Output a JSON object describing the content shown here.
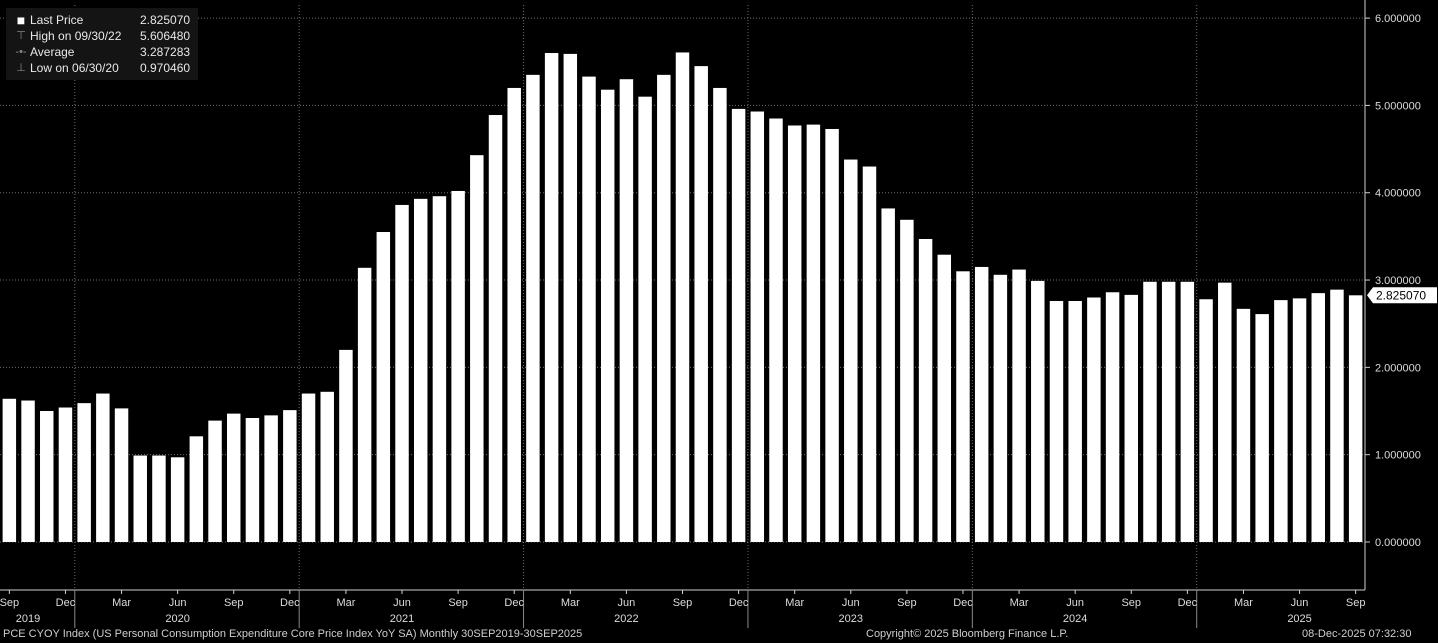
{
  "legend": {
    "last_label": "Last Price",
    "last_value": "2.825070",
    "high_label": "High on 09/30/22",
    "high_value": "5.606480",
    "avg_label": "Average",
    "avg_value": "3.287283",
    "low_label": "Low on 06/30/20",
    "low_value": "0.970460"
  },
  "last_price_tag": "2.825070",
  "footer": {
    "left": "PCE CYOY Index (US Personal Consumption Expenditure Core Price Index YoY SA) Monthly 30SEP2019-30SEP2025",
    "center": "Copyright© 2025 Bloomberg Finance L.P.",
    "right": "08-Dec-2025 07:32:30"
  },
  "chart_data": {
    "type": "bar",
    "categories": [
      "2019-09",
      "2019-10",
      "2019-11",
      "2019-12",
      "2020-01",
      "2020-02",
      "2020-03",
      "2020-04",
      "2020-05",
      "2020-06",
      "2020-07",
      "2020-08",
      "2020-09",
      "2020-10",
      "2020-11",
      "2020-12",
      "2021-01",
      "2021-02",
      "2021-03",
      "2021-04",
      "2021-05",
      "2021-06",
      "2021-07",
      "2021-08",
      "2021-09",
      "2021-10",
      "2021-11",
      "2021-12",
      "2022-01",
      "2022-02",
      "2022-03",
      "2022-04",
      "2022-05",
      "2022-06",
      "2022-07",
      "2022-08",
      "2022-09",
      "2022-10",
      "2022-11",
      "2022-12",
      "2023-01",
      "2023-02",
      "2023-03",
      "2023-04",
      "2023-05",
      "2023-06",
      "2023-07",
      "2023-08",
      "2023-09",
      "2023-10",
      "2023-11",
      "2023-12",
      "2024-01",
      "2024-02",
      "2024-03",
      "2024-04",
      "2024-05",
      "2024-06",
      "2024-07",
      "2024-08",
      "2024-09",
      "2024-10",
      "2024-11",
      "2024-12",
      "2025-01",
      "2025-02",
      "2025-03",
      "2025-04",
      "2025-05",
      "2025-06",
      "2025-07",
      "2025-08",
      "2025-09"
    ],
    "values": [
      1.64,
      1.62,
      1.5,
      1.54,
      1.59,
      1.7,
      1.53,
      0.99,
      0.99,
      0.97,
      1.21,
      1.39,
      1.47,
      1.42,
      1.45,
      1.51,
      1.7,
      1.72,
      2.2,
      3.14,
      3.55,
      3.86,
      3.93,
      3.96,
      4.02,
      4.43,
      4.89,
      5.2,
      5.35,
      5.6,
      5.59,
      5.33,
      5.18,
      5.3,
      5.1,
      5.35,
      5.60648,
      5.45,
      5.2,
      4.96,
      4.93,
      4.85,
      4.77,
      4.78,
      4.73,
      4.38,
      4.3,
      3.82,
      3.69,
      3.47,
      3.29,
      3.1,
      3.15,
      3.06,
      3.12,
      2.99,
      2.76,
      2.76,
      2.8,
      2.86,
      2.83,
      2.98,
      2.98,
      2.98,
      2.78,
      2.97,
      2.67,
      2.61,
      2.77,
      2.79,
      2.85,
      2.89,
      2.82507
    ],
    "ylim": [
      -0.55,
      6.15
    ],
    "y_ticks": [
      0,
      1,
      2,
      3,
      4,
      5,
      6
    ],
    "y_tick_labels": [
      "0.000000",
      "1.000000",
      "2.000000",
      "3.000000",
      "4.000000",
      "5.000000",
      "6.000000"
    ],
    "x_month_labels": [
      {
        "i": 0,
        "text": "Sep"
      },
      {
        "i": 3,
        "text": "Dec"
      },
      {
        "i": 6,
        "text": "Mar"
      },
      {
        "i": 9,
        "text": "Jun"
      },
      {
        "i": 12,
        "text": "Sep"
      },
      {
        "i": 15,
        "text": "Dec"
      },
      {
        "i": 18,
        "text": "Mar"
      },
      {
        "i": 21,
        "text": "Jun"
      },
      {
        "i": 24,
        "text": "Sep"
      },
      {
        "i": 27,
        "text": "Dec"
      },
      {
        "i": 30,
        "text": "Mar"
      },
      {
        "i": 33,
        "text": "Jun"
      },
      {
        "i": 36,
        "text": "Sep"
      },
      {
        "i": 39,
        "text": "Dec"
      },
      {
        "i": 42,
        "text": "Mar"
      },
      {
        "i": 45,
        "text": "Jun"
      },
      {
        "i": 48,
        "text": "Sep"
      },
      {
        "i": 51,
        "text": "Dec"
      },
      {
        "i": 54,
        "text": "Mar"
      },
      {
        "i": 57,
        "text": "Jun"
      },
      {
        "i": 60,
        "text": "Sep"
      },
      {
        "i": 63,
        "text": "Dec"
      },
      {
        "i": 66,
        "text": "Mar"
      },
      {
        "i": 69,
        "text": "Jun"
      },
      {
        "i": 72,
        "text": "Sep"
      }
    ],
    "x_year_labels": [
      {
        "i": 1,
        "text": "2019"
      },
      {
        "i": 9,
        "text": "2020"
      },
      {
        "i": 21,
        "text": "2021"
      },
      {
        "i": 33,
        "text": "2022"
      },
      {
        "i": 45,
        "text": "2023"
      },
      {
        "i": 57,
        "text": "2024"
      },
      {
        "i": 69,
        "text": "2025"
      }
    ],
    "year_boundaries": [
      3.5,
      15.5,
      27.5,
      39.5,
      51.5,
      63.5
    ],
    "grid": true,
    "bar_color": "#ffffff",
    "grid_color": "#6e6e6e",
    "background": "#000000"
  }
}
